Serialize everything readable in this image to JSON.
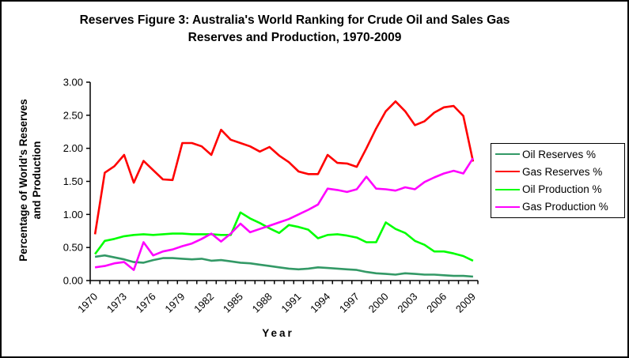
{
  "figure": {
    "title_line1": "Reserves Figure 3: Australia's World Ranking for Crude Oil and Sales Gas",
    "title_line2": "Reserves and Production, 1970-2009",
    "y_axis_title_line1": "Percentage of World's Reserves",
    "y_axis_title_line2": "and Production",
    "x_axis_title": "Year"
  },
  "chart_data": {
    "type": "line",
    "title": "Reserves Figure 3: Australia's World Ranking for Crude Oil and Sales Gas Reserves and Production, 1970-2009",
    "xlabel": "Year",
    "ylabel": "Percentage of World's Reserves and Production",
    "ylim": [
      0,
      3
    ],
    "ytick_step": 0.5,
    "ytick_labels": [
      "0.00",
      "0.50",
      "1.00",
      "1.50",
      "2.00",
      "2.50",
      "3.00"
    ],
    "grid": false,
    "legend_position": "right",
    "x": [
      1970,
      1971,
      1972,
      1973,
      1974,
      1975,
      1976,
      1977,
      1978,
      1979,
      1980,
      1981,
      1982,
      1983,
      1984,
      1985,
      1986,
      1987,
      1988,
      1989,
      1990,
      1991,
      1992,
      1993,
      1994,
      1995,
      1996,
      1997,
      1998,
      1999,
      2000,
      2001,
      2002,
      2003,
      2004,
      2005,
      2006,
      2007,
      2008,
      2009
    ],
    "xtick_labels": [
      "1970",
      "1973",
      "1976",
      "1979",
      "1982",
      "1985",
      "1988",
      "1991",
      "1994",
      "1997",
      "2000",
      "2003",
      "2006",
      "2009"
    ],
    "xtick_label_interval": 3,
    "series": [
      {
        "name": "Oil Reserves %",
        "color": "#339966",
        "values": [
          0.36,
          0.38,
          0.35,
          0.32,
          0.28,
          0.27,
          0.31,
          0.34,
          0.34,
          0.33,
          0.32,
          0.33,
          0.3,
          0.31,
          0.29,
          0.27,
          0.26,
          0.24,
          0.22,
          0.2,
          0.18,
          0.17,
          0.18,
          0.2,
          0.19,
          0.18,
          0.17,
          0.16,
          0.13,
          0.11,
          0.1,
          0.09,
          0.11,
          0.1,
          0.09,
          0.09,
          0.08,
          0.07,
          0.07,
          0.06
        ]
      },
      {
        "name": "Gas Reserves %",
        "color": "#FF0000",
        "values": [
          0.7,
          1.63,
          1.73,
          1.9,
          1.48,
          1.81,
          1.67,
          1.53,
          1.52,
          2.08,
          2.08,
          2.03,
          1.9,
          2.28,
          2.13,
          2.08,
          2.03,
          1.95,
          2.02,
          1.89,
          1.79,
          1.65,
          1.61,
          1.61,
          1.9,
          1.78,
          1.77,
          1.72,
          2.0,
          2.3,
          2.56,
          2.71,
          2.56,
          2.35,
          2.41,
          2.54,
          2.62,
          2.64,
          2.49,
          1.8
        ]
      },
      {
        "name": "Oil Production %",
        "color": "#00FF00",
        "values": [
          0.4,
          0.6,
          0.63,
          0.67,
          0.69,
          0.7,
          0.69,
          0.7,
          0.71,
          0.71,
          0.7,
          0.7,
          0.7,
          0.69,
          0.69,
          1.03,
          0.94,
          0.87,
          0.79,
          0.72,
          0.84,
          0.81,
          0.77,
          0.64,
          0.69,
          0.7,
          0.68,
          0.65,
          0.58,
          0.58,
          0.88,
          0.78,
          0.72,
          0.6,
          0.54,
          0.44,
          0.44,
          0.41,
          0.37,
          0.3
        ]
      },
      {
        "name": "Gas Production %",
        "color": "#FF00FF",
        "values": [
          0.2,
          0.22,
          0.26,
          0.28,
          0.16,
          0.58,
          0.38,
          0.44,
          0.47,
          0.52,
          0.56,
          0.63,
          0.71,
          0.59,
          0.71,
          0.86,
          0.73,
          0.78,
          0.83,
          0.88,
          0.93,
          1.0,
          1.07,
          1.15,
          1.39,
          1.37,
          1.34,
          1.38,
          1.57,
          1.39,
          1.38,
          1.36,
          1.41,
          1.38,
          1.49,
          1.56,
          1.62,
          1.66,
          1.62,
          1.85
        ]
      }
    ]
  }
}
